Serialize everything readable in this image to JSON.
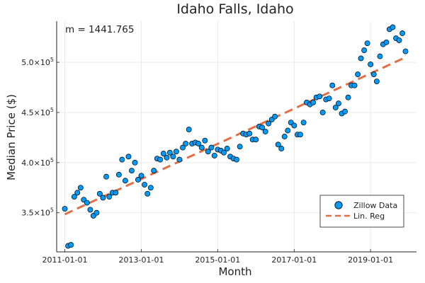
{
  "chart_data": {
    "type": "scatter",
    "title": "Idaho Falls, Idaho",
    "xlabel": "Month",
    "ylabel": "Median Price ($)",
    "annotation": "m = 1441.765",
    "x_tick_labels": [
      "2011-01-01",
      "2013-01-01",
      "2015-01-01",
      "2017-01-01",
      "2019-01-01"
    ],
    "y_ticks": [
      {
        "value": 350000,
        "mantissa": "3.5×10",
        "exponent": "5"
      },
      {
        "value": 400000,
        "mantissa": "4.0×10",
        "exponent": "5"
      },
      {
        "value": 450000,
        "mantissa": "4.5×10",
        "exponent": "5"
      },
      {
        "value": 500000,
        "mantissa": "5.0×10",
        "exponent": "5"
      }
    ],
    "xlim": [
      "2010-10-15",
      "2020-03-15"
    ],
    "ylim": [
      311000,
      541000
    ],
    "grid": true,
    "legend_position": "bottom-right",
    "colors": {
      "points": "#009AF9",
      "line": "#E26F46",
      "axis": "#222222",
      "grid": "#E5E5E5"
    },
    "series": [
      {
        "name": "Zillow Data",
        "kind": "scatter",
        "x": [
          "2011-01-01",
          "2011-02-01",
          "2011-03-01",
          "2011-04-01",
          "2011-05-01",
          "2011-06-01",
          "2011-07-01",
          "2011-08-01",
          "2011-09-01",
          "2011-10-01",
          "2011-11-01",
          "2011-12-01",
          "2012-01-01",
          "2012-02-01",
          "2012-03-01",
          "2012-04-01",
          "2012-05-01",
          "2012-06-01",
          "2012-07-01",
          "2012-08-01",
          "2012-09-01",
          "2012-10-01",
          "2012-11-01",
          "2012-12-01",
          "2013-01-01",
          "2013-02-01",
          "2013-03-01",
          "2013-04-01",
          "2013-05-01",
          "2013-06-01",
          "2013-07-01",
          "2013-08-01",
          "2013-09-01",
          "2013-10-01",
          "2013-11-01",
          "2013-12-01",
          "2014-01-01",
          "2014-02-01",
          "2014-03-01",
          "2014-04-01",
          "2014-05-01",
          "2014-06-01",
          "2014-07-01",
          "2014-08-01",
          "2014-09-01",
          "2014-10-01",
          "2014-11-01",
          "2014-12-01",
          "2015-01-01",
          "2015-02-01",
          "2015-03-01",
          "2015-04-01",
          "2015-05-01",
          "2015-06-01",
          "2015-07-01",
          "2015-08-01",
          "2015-09-01",
          "2015-10-01",
          "2015-11-01",
          "2015-12-01",
          "2016-01-01",
          "2016-02-01",
          "2016-03-01",
          "2016-04-01",
          "2016-05-01",
          "2016-06-01",
          "2016-07-01",
          "2016-08-01",
          "2016-09-01",
          "2016-10-01",
          "2016-11-01",
          "2016-12-01",
          "2017-01-01",
          "2017-02-01",
          "2017-03-01",
          "2017-04-01",
          "2017-05-01",
          "2017-06-01",
          "2017-07-01",
          "2017-08-01",
          "2017-09-01",
          "2017-10-01",
          "2017-11-01",
          "2017-12-01",
          "2018-01-01",
          "2018-02-01",
          "2018-03-01",
          "2018-04-01",
          "2018-05-01",
          "2018-06-01",
          "2018-07-01",
          "2018-08-01",
          "2018-09-01",
          "2018-10-01",
          "2018-11-01",
          "2018-12-01",
          "2019-01-01",
          "2019-02-01",
          "2019-03-01",
          "2019-04-01",
          "2019-05-01",
          "2019-06-01",
          "2019-07-01",
          "2019-08-01",
          "2019-09-01",
          "2019-10-01",
          "2019-11-01",
          "2019-12-01"
        ],
        "y": [
          354000,
          317000,
          318000,
          366000,
          370000,
          375000,
          363000,
          360000,
          353000,
          347000,
          350000,
          369000,
          365000,
          386000,
          366000,
          370000,
          370000,
          388000,
          403000,
          382000,
          406000,
          392000,
          400000,
          383000,
          387000,
          378000,
          369000,
          375000,
          392000,
          404000,
          403000,
          409000,
          405000,
          410000,
          406000,
          411000,
          403000,
          415000,
          419000,
          433000,
          419000,
          420000,
          419000,
          415000,
          422000,
          411000,
          415000,
          407000,
          413000,
          412000,
          410000,
          414000,
          406000,
          404000,
          403000,
          416000,
          429000,
          428000,
          429000,
          423000,
          423000,
          436000,
          435000,
          431000,
          439000,
          443000,
          446000,
          418000,
          414000,
          426000,
          432000,
          440000,
          437000,
          428000,
          428000,
          440000,
          460000,
          458000,
          460000,
          465000,
          466000,
          450000,
          463000,
          464000,
          477000,
          455000,
          459000,
          449000,
          451000,
          465000,
          477000,
          477000,
          488000,
          504000,
          512000,
          519000,
          498000,
          488000,
          481000,
          506000,
          518000,
          520000,
          533000,
          535000,
          524000,
          522000,
          529000,
          511000
        ]
      },
      {
        "name": "Lin. Reg",
        "kind": "line",
        "x": [
          "2011-01-01",
          "2019-12-01"
        ],
        "y": [
          348500,
          505000
        ]
      }
    ]
  }
}
